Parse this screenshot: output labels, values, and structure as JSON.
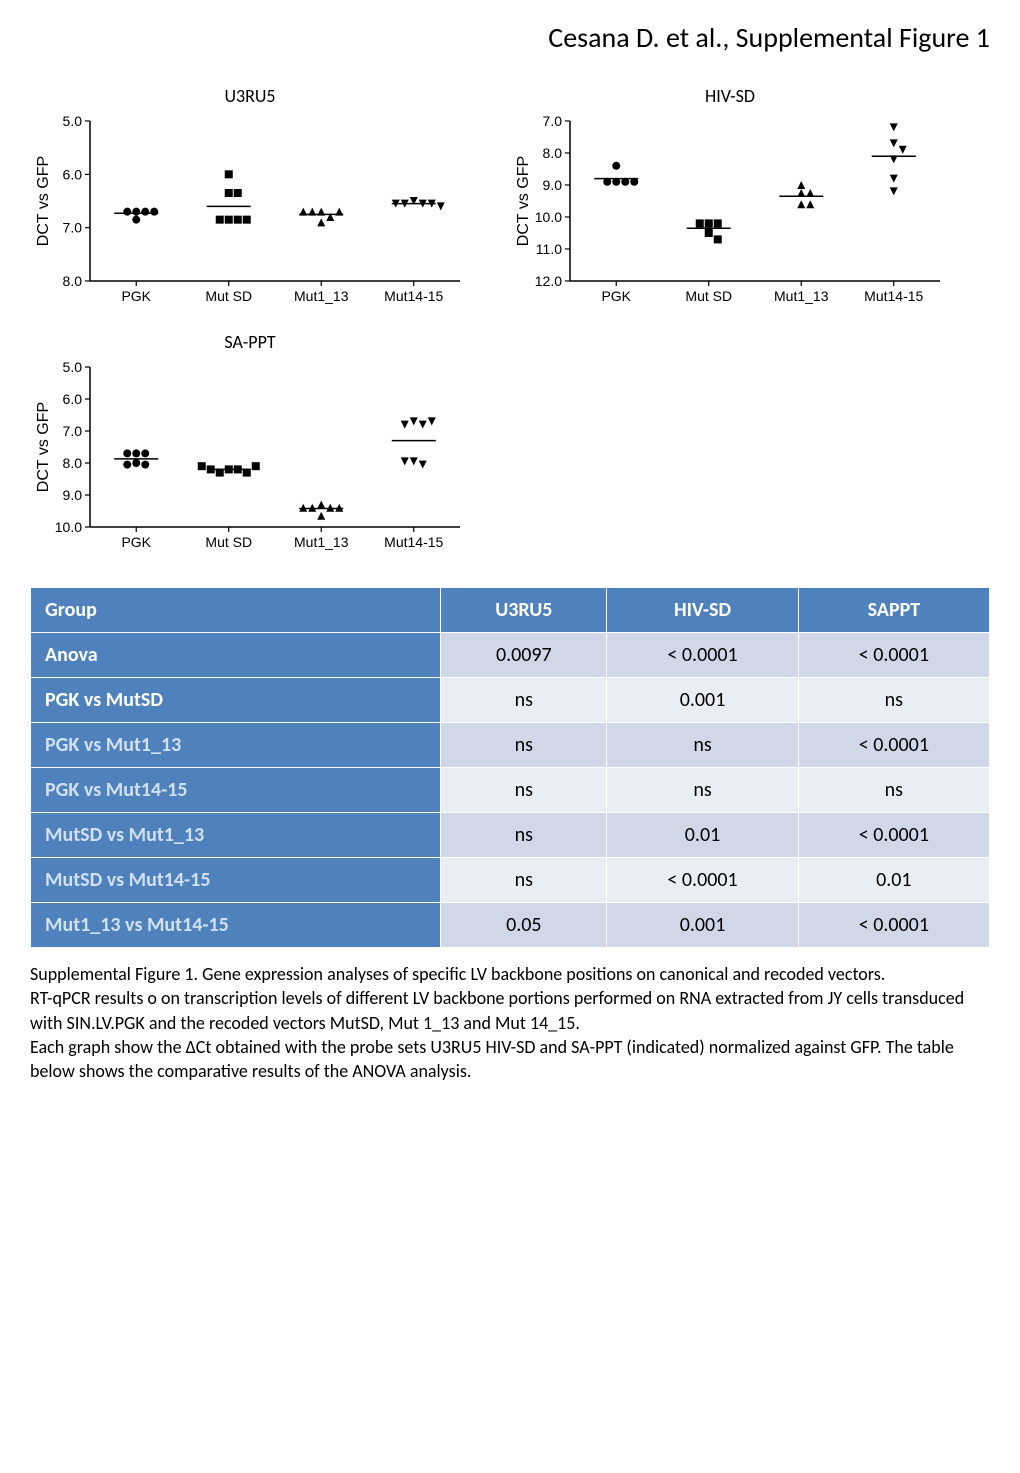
{
  "title": "Cesana D. et al., Supplemental Figure 1",
  "charts": [
    {
      "id": "u3ru5",
      "title": "U3RU5",
      "ylabel": "DCT vs GFP",
      "ylim": [
        5.0,
        8.0
      ],
      "yticks": [
        5.0,
        6.0,
        7.0,
        8.0
      ],
      "categories": [
        "PGK",
        "Mut SD",
        "Mut1_13",
        "Mut14-15"
      ],
      "markers": [
        "circle",
        "square",
        "triangle-up",
        "triangle-down"
      ],
      "series": [
        {
          "points": [
            6.7,
            6.7,
            6.85,
            6.7,
            6.7
          ],
          "mean": 6.73
        },
        {
          "points": [
            6.0,
            6.35,
            6.35,
            6.85,
            6.85,
            6.85,
            6.85
          ],
          "mean": 6.6
        },
        {
          "points": [
            6.7,
            6.8,
            6.9,
            6.7,
            6.7,
            6.7
          ],
          "mean": 6.75
        },
        {
          "points": [
            6.5,
            6.55,
            6.55,
            6.55,
            6.55,
            6.6
          ],
          "mean": 6.55
        }
      ],
      "colors": {
        "marker": "#000000",
        "axis": "#000000",
        "tick_font": 14,
        "label_font": 16
      }
    },
    {
      "id": "hivsd",
      "title": "HIV-SD",
      "ylabel": "DCT vs GFP",
      "ylim": [
        7.0,
        12.0
      ],
      "yticks": [
        7.0,
        8.0,
        9.0,
        10.0,
        11.0,
        12.0
      ],
      "categories": [
        "PGK",
        "Mut SD",
        "Mut1_13",
        "Mut14-15"
      ],
      "markers": [
        "circle",
        "square",
        "triangle-up",
        "triangle-down"
      ],
      "series": [
        {
          "points": [
            8.4,
            8.9,
            8.9,
            8.9,
            8.9
          ],
          "mean": 8.8
        },
        {
          "points": [
            10.2,
            10.5,
            10.2,
            10.7,
            10.2
          ],
          "mean": 10.35
        },
        {
          "points": [
            9.25,
            9.0,
            9.25,
            9.6,
            9.6
          ],
          "mean": 9.35
        },
        {
          "points": [
            7.2,
            7.7,
            7.9,
            8.8,
            9.2,
            8.2
          ],
          "mean": 8.1
        }
      ],
      "colors": {
        "marker": "#000000",
        "axis": "#000000",
        "tick_font": 14,
        "label_font": 16
      }
    },
    {
      "id": "sappt",
      "title": "SA-PPT",
      "ylabel": "DCT vs GFP",
      "ylim": [
        5.0,
        10.0
      ],
      "yticks": [
        5.0,
        6.0,
        7.0,
        8.0,
        9.0,
        10.0
      ],
      "categories": [
        "PGK",
        "Mut SD",
        "Mut1_13",
        "Mut14-15"
      ],
      "markers": [
        "circle",
        "square",
        "triangle-up",
        "triangle-down"
      ],
      "series": [
        {
          "points": [
            7.7,
            7.7,
            7.7,
            8.0,
            8.05,
            8.05
          ],
          "mean": 7.87
        },
        {
          "points": [
            8.2,
            8.2,
            8.3,
            8.3,
            8.2,
            8.1,
            8.1
          ],
          "mean": 8.2
        },
        {
          "points": [
            9.3,
            9.4,
            9.4,
            9.65,
            9.4,
            9.4
          ],
          "mean": 9.42
        },
        {
          "points": [
            6.7,
            6.8,
            6.8,
            6.7,
            7.95,
            8.05,
            7.95
          ],
          "mean": 7.3
        }
      ],
      "colors": {
        "marker": "#000000",
        "axis": "#000000",
        "tick_font": 14,
        "label_font": 16
      }
    }
  ],
  "table": {
    "headers": [
      "Group",
      "U3RU5",
      "HIV-SD",
      "SAPPT"
    ],
    "rows": [
      {
        "label": "Anova",
        "vals": [
          "0.0097",
          "< 0.0001",
          "< 0.0001"
        ],
        "light": false
      },
      {
        "label": "PGK vs MutSD",
        "vals": [
          "ns",
          "0.001",
          "ns"
        ],
        "light": false
      },
      {
        "label": "PGK vs Mut1_13",
        "vals": [
          "ns",
          "ns",
          "< 0.0001"
        ],
        "light": true
      },
      {
        "label": "PGK vs Mut14-15",
        "vals": [
          "ns",
          "ns",
          "ns"
        ],
        "light": true
      },
      {
        "label": "MutSD vs Mut1_13",
        "vals": [
          "ns",
          "0.01",
          "< 0.0001"
        ],
        "light": true
      },
      {
        "label": "MutSD vs Mut14-15",
        "vals": [
          "ns",
          "< 0.0001",
          "0.01"
        ],
        "light": true
      },
      {
        "label": "Mut1_13 vs Mut14-15",
        "vals": [
          "0.05",
          "0.001",
          "< 0.0001"
        ],
        "light": true
      }
    ],
    "header_bg": "#4f81bd",
    "header_fg": "#ffffff",
    "cell_bg_a": "#d0d8e8",
    "cell_bg_b": "#e9edf4"
  },
  "caption": {
    "p1": "Supplemental Figure 1. Gene expression analyses of specific LV backbone positions on canonical and recoded vectors.",
    "p2": "RT-qPCR results o on transcription levels of different LV backbone portions performed on RNA extracted from JY cells transduced with SIN.LV.PGK and the  recoded vectors MutSD, Mut 1_13 and Mut 14_15.",
    "p3": "Each graph show the ΔCt obtained with the probe sets U3RU5 HIV-SD and SA-PPT (indicated) normalized against GFP. The table below shows the comparative results of the ANOVA analysis."
  }
}
